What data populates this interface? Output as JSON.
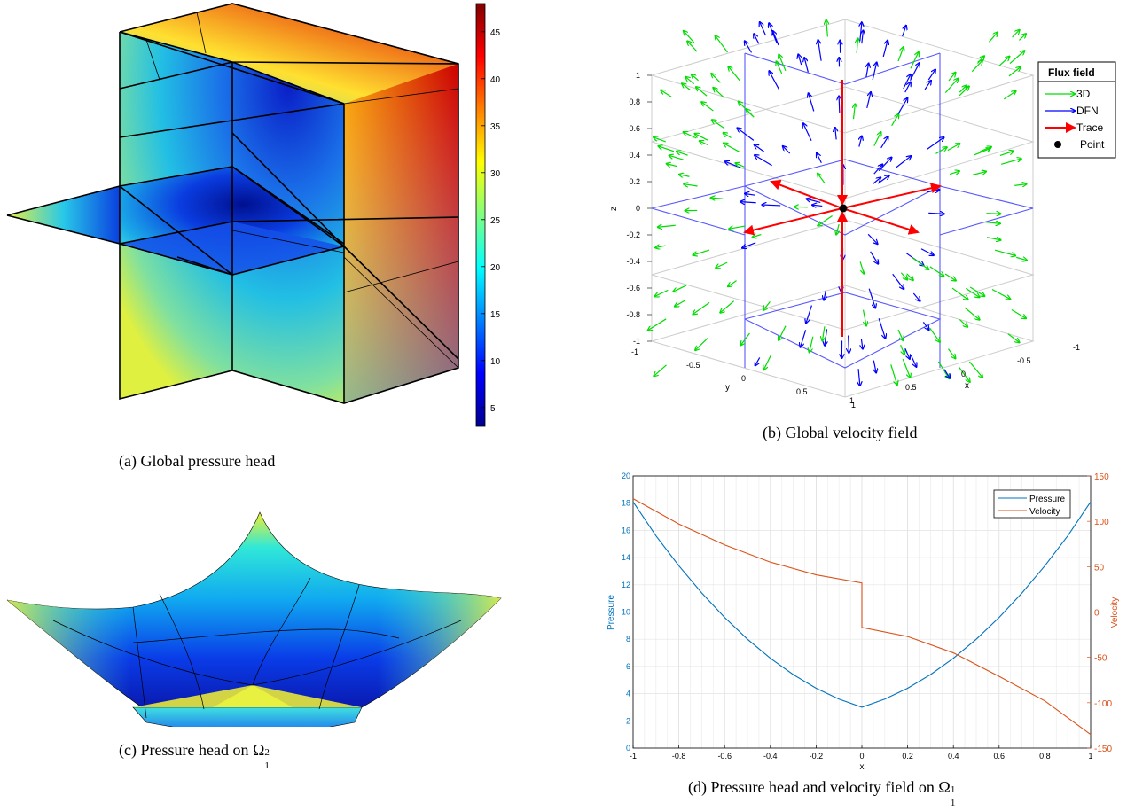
{
  "captions": {
    "a": "(a) Global pressure head",
    "b": "(b) Global velocity field",
    "c_prefix": "(c) Pressure head on ",
    "d_prefix": "(d) Pressure head and velocity field on ",
    "omega_symbol": "Ω",
    "c_sub": "1",
    "c_sup": "2",
    "d_sub": "1",
    "d_sup": "1"
  },
  "colormap": {
    "name": "jet",
    "ticks": [
      "45",
      "40",
      "35",
      "30",
      "25",
      "20",
      "15",
      "10",
      "5"
    ]
  },
  "chart_data": [
    {
      "id": "a",
      "type": "heatmap",
      "title": "",
      "colorbar_ticks": [
        45,
        40,
        35,
        30,
        25,
        20,
        15,
        10,
        5
      ],
      "colorbar_range": [
        3,
        48
      ]
    },
    {
      "id": "b",
      "type": "scatter",
      "title": "",
      "xlabel": "x",
      "ylabel": "y",
      "zlabel": "z",
      "z_ticks": [
        "1",
        "0.8",
        "0.6",
        "0.4",
        "0.2",
        "0",
        "-0.2",
        "-0.4",
        "-0.6",
        "-0.8",
        "-1"
      ],
      "y_ticks": [
        "-1",
        "-0.5",
        "0",
        "0.5",
        "1"
      ],
      "x_ticks": [
        "1",
        "0.5",
        "0",
        "-0.5",
        "-1"
      ],
      "legend_title": "Flux field",
      "legend": [
        "3D",
        "DFN",
        "Trace",
        "Point"
      ],
      "colors": {
        "3D": "#00dd00",
        "DFN": "#0000ff",
        "Trace": "#ff0000",
        "Point": "#000000"
      }
    },
    {
      "id": "c",
      "type": "heatmap",
      "title": ""
    },
    {
      "id": "d",
      "type": "line",
      "title": "",
      "xlabel": "x",
      "ylabel_left": "Pressure",
      "ylabel_right": "Velocity",
      "xlim": [
        -1,
        1
      ],
      "ylim_left": [
        0,
        20
      ],
      "ylim_right": [
        -150,
        150
      ],
      "x_ticks": [
        "-1",
        "-0.8",
        "-0.6",
        "-0.4",
        "-0.2",
        "0",
        "0.2",
        "0.4",
        "0.6",
        "0.8",
        "1"
      ],
      "y_left_ticks": [
        "0",
        "2",
        "4",
        "6",
        "8",
        "10",
        "12",
        "14",
        "16",
        "18",
        "20"
      ],
      "y_right_ticks": [
        "-150",
        "-100",
        "-50",
        "0",
        "50",
        "100",
        "150"
      ],
      "legend": [
        "Pressure",
        "Velocity"
      ],
      "legend_position": "top-right",
      "grid": true,
      "colors": {
        "Pressure": "#0072bd",
        "Velocity": "#d95319"
      },
      "series": [
        {
          "name": "Pressure",
          "axis": "left",
          "x": [
            -1,
            -0.9,
            -0.8,
            -0.7,
            -0.6,
            -0.5,
            -0.4,
            -0.3,
            -0.2,
            -0.1,
            0,
            0.1,
            0.2,
            0.3,
            0.4,
            0.5,
            0.6,
            0.7,
            0.8,
            0.9,
            1
          ],
          "values": [
            18.1,
            15.6,
            13.4,
            11.4,
            9.6,
            8.0,
            6.6,
            5.4,
            4.4,
            3.6,
            3.0,
            3.6,
            4.4,
            5.4,
            6.6,
            8.0,
            9.6,
            11.4,
            13.4,
            15.6,
            18.1
          ]
        },
        {
          "name": "Velocity",
          "axis": "right",
          "x": [
            -1,
            -0.8,
            -0.6,
            -0.4,
            -0.2,
            0,
            0,
            0.2,
            0.4,
            0.6,
            0.8,
            1
          ],
          "values": [
            125,
            97,
            74,
            55,
            41,
            32,
            -17,
            -27,
            -45,
            -71,
            -98,
            -135
          ]
        }
      ]
    }
  ]
}
